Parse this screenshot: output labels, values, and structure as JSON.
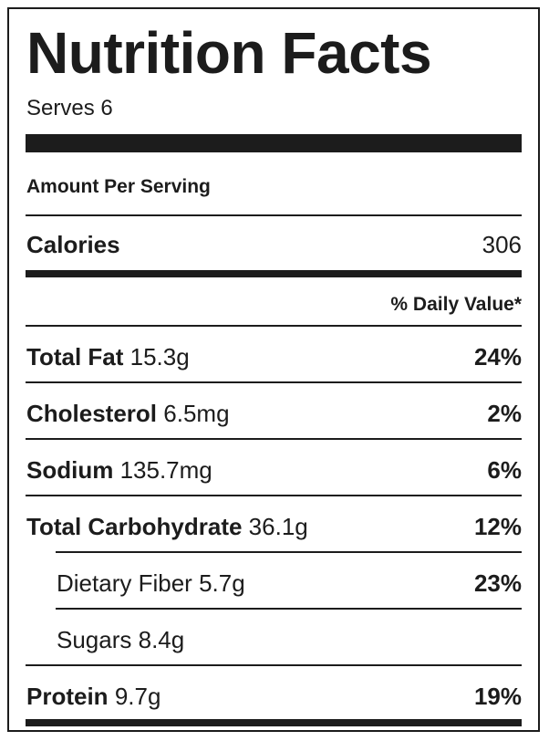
{
  "label": {
    "title": "Nutrition Facts",
    "serves": "Serves 6",
    "amount_per_serving": "Amount Per Serving",
    "calories": {
      "name": "Calories",
      "value": "306"
    },
    "daily_value_header": "% Daily Value*",
    "nutrients": [
      {
        "name": "Total Fat",
        "amount": "15.3g",
        "dv": "24%"
      },
      {
        "name": "Cholesterol",
        "amount": "6.5mg",
        "dv": "2%"
      },
      {
        "name": "Sodium",
        "amount": "135.7mg",
        "dv": "6%"
      },
      {
        "name": "Total Carbohydrate",
        "amount": "36.1g",
        "dv": "12%"
      },
      {
        "name": "Dietary Fiber",
        "amount": "5.7g",
        "dv": "23%"
      },
      {
        "name": "Sugars",
        "amount": "8.4g",
        "dv": ""
      },
      {
        "name": "Protein",
        "amount": "9.7g",
        "dv": "19%"
      }
    ]
  }
}
